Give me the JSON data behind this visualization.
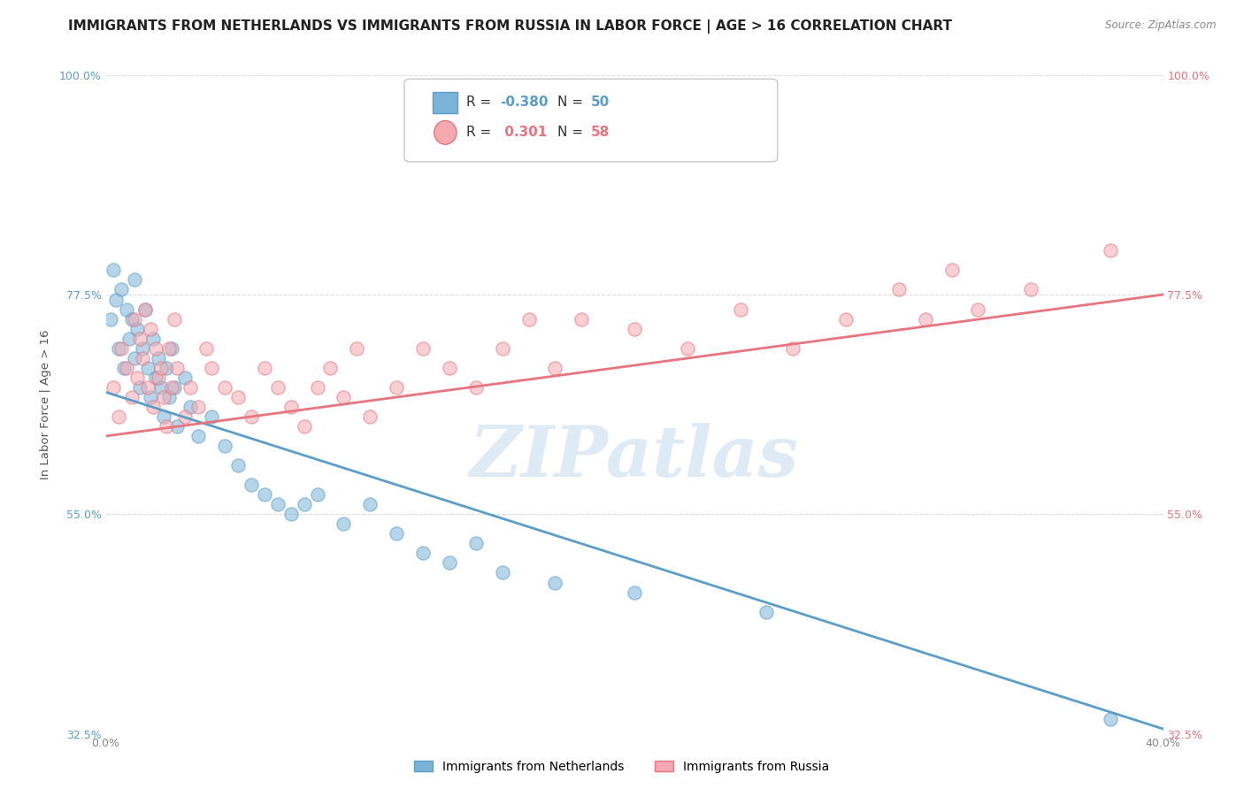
{
  "title": "IMMIGRANTS FROM NETHERLANDS VS IMMIGRANTS FROM RUSSIA IN LABOR FORCE | AGE > 16 CORRELATION CHART",
  "source": "Source: ZipAtlas.com",
  "ylabel": "In Labor Force | Age > 16",
  "xlim": [
    0.0,
    40.0
  ],
  "ylim": [
    32.5,
    100.0
  ],
  "xticks": [
    0.0,
    10.0,
    20.0,
    30.0,
    40.0
  ],
  "yticks": [
    32.5,
    55.0,
    77.5,
    100.0
  ],
  "xticklabels": [
    "0.0%",
    "",
    "",
    "",
    "40.0%"
  ],
  "yticklabels_left": [
    "32.5%",
    "55.0%",
    "77.5%",
    "100.0%"
  ],
  "yticklabels_right": [
    "32.5%",
    "55.0%",
    "77.5%",
    "100.0%"
  ],
  "netherlands_color": "#7ab4d8",
  "netherlands_color_line": "#5b9ec9",
  "russia_color": "#f4a8b0",
  "russia_color_line": "#e8747f",
  "netherlands_R": -0.38,
  "netherlands_N": 50,
  "russia_R": 0.301,
  "russia_N": 58,
  "nl_x": [
    0.2,
    0.3,
    0.4,
    0.5,
    0.6,
    0.7,
    0.8,
    0.9,
    1.0,
    1.1,
    1.1,
    1.2,
    1.3,
    1.4,
    1.5,
    1.6,
    1.7,
    1.8,
    1.9,
    2.0,
    2.1,
    2.2,
    2.3,
    2.4,
    2.5,
    2.6,
    2.7,
    3.0,
    3.2,
    3.5,
    4.0,
    4.5,
    5.0,
    5.5,
    6.0,
    6.5,
    7.0,
    7.5,
    8.0,
    9.0,
    10.0,
    11.0,
    12.0,
    13.0,
    14.0,
    15.0,
    17.0,
    20.0,
    25.0,
    38.0
  ],
  "nl_y": [
    75.0,
    80.0,
    77.0,
    72.0,
    78.0,
    70.0,
    76.0,
    73.0,
    75.0,
    71.0,
    79.0,
    74.0,
    68.0,
    72.0,
    76.0,
    70.0,
    67.0,
    73.0,
    69.0,
    71.0,
    68.0,
    65.0,
    70.0,
    67.0,
    72.0,
    68.0,
    64.0,
    69.0,
    66.0,
    63.0,
    65.0,
    62.0,
    60.0,
    58.0,
    57.0,
    56.0,
    55.0,
    56.0,
    57.0,
    54.0,
    56.0,
    53.0,
    51.0,
    50.0,
    52.0,
    49.0,
    48.0,
    47.0,
    45.0,
    34.0
  ],
  "ru_x": [
    0.3,
    0.5,
    0.6,
    0.8,
    1.0,
    1.1,
    1.2,
    1.3,
    1.4,
    1.5,
    1.6,
    1.7,
    1.8,
    1.9,
    2.0,
    2.1,
    2.2,
    2.3,
    2.4,
    2.5,
    2.6,
    2.7,
    3.0,
    3.2,
    3.5,
    3.8,
    4.0,
    4.5,
    5.0,
    5.5,
    6.0,
    6.5,
    7.0,
    7.5,
    8.0,
    8.5,
    9.0,
    9.5,
    10.0,
    11.0,
    12.0,
    13.0,
    14.0,
    15.0,
    16.0,
    17.0,
    18.0,
    20.0,
    22.0,
    24.0,
    26.0,
    28.0,
    30.0,
    31.0,
    32.0,
    33.0,
    35.0,
    38.0
  ],
  "ru_y": [
    68.0,
    65.0,
    72.0,
    70.0,
    67.0,
    75.0,
    69.0,
    73.0,
    71.0,
    76.0,
    68.0,
    74.0,
    66.0,
    72.0,
    69.0,
    70.0,
    67.0,
    64.0,
    72.0,
    68.0,
    75.0,
    70.0,
    65.0,
    68.0,
    66.0,
    72.0,
    70.0,
    68.0,
    67.0,
    65.0,
    70.0,
    68.0,
    66.0,
    64.0,
    68.0,
    70.0,
    67.0,
    72.0,
    65.0,
    68.0,
    72.0,
    70.0,
    68.0,
    72.0,
    75.0,
    70.0,
    75.0,
    74.0,
    72.0,
    76.0,
    72.0,
    75.0,
    78.0,
    75.0,
    80.0,
    76.0,
    78.0,
    82.0
  ],
  "nl_trend_x0": 0.0,
  "nl_trend_y0": 67.5,
  "nl_trend_x1": 40.0,
  "nl_trend_y1": 33.0,
  "ru_trend_x0": 0.0,
  "ru_trend_y0": 63.0,
  "ru_trend_x1": 40.0,
  "ru_trend_y1": 77.5,
  "background_color": "#ffffff",
  "grid_color": "#dddddd",
  "watermark": "ZIPatlas",
  "title_fontsize": 11,
  "tick_fontsize": 9,
  "legend_fontsize": 11
}
